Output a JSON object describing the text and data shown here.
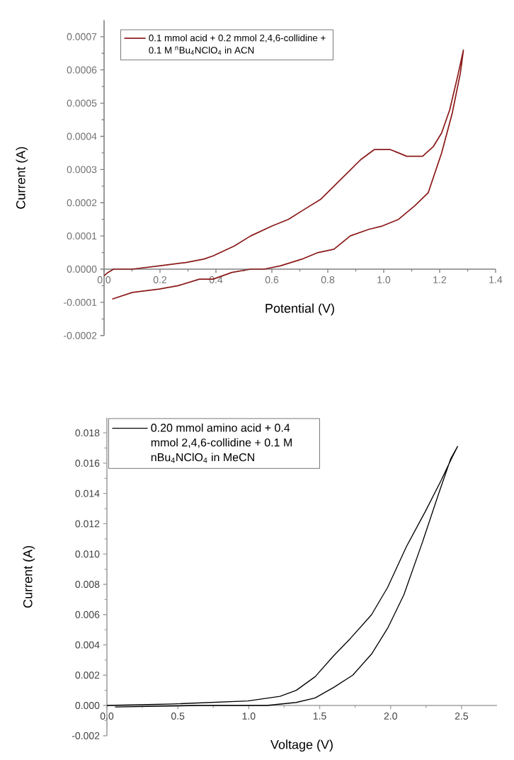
{
  "chart_data": [
    {
      "type": "line",
      "xlabel": "Potential (V)",
      "ylabel": "Current (A)",
      "xlim": [
        0,
        1.4
      ],
      "ylim": [
        -0.0002,
        0.00075
      ],
      "xticks": [
        {
          "value": 0,
          "label": "0.0"
        },
        {
          "value": 0.2,
          "label": "0.2"
        },
        {
          "value": 0.4,
          "label": "0.4"
        },
        {
          "value": 0.6,
          "label": "0.6"
        },
        {
          "value": 0.8,
          "label": "0.8"
        },
        {
          "value": 1.0,
          "label": "1.0"
        },
        {
          "value": 1.2,
          "label": "1.2"
        },
        {
          "value": 1.4,
          "label": "1.4"
        }
      ],
      "yticks": [
        {
          "value": -0.0002,
          "label": "-0.0002"
        },
        {
          "value": -0.0001,
          "label": "-0.0001"
        },
        {
          "value": 0,
          "label": "0.0000"
        },
        {
          "value": 0.0001,
          "label": "0.0001"
        },
        {
          "value": 0.0002,
          "label": "0.0002"
        },
        {
          "value": 0.0003,
          "label": "0.0003"
        },
        {
          "value": 0.0004,
          "label": "0.0004"
        },
        {
          "value": 0.0005,
          "label": "0.0005"
        },
        {
          "value": 0.0006,
          "label": "0.0006"
        },
        {
          "value": 0.0007,
          "label": "0.0007"
        }
      ],
      "legend": "top left",
      "series": [
        {
          "name": "0.1 mmol acid + 0.2 mmol 2,4,6-collidine + 0.1 M $^{n}$Bu$_{4}$NClO$_{4}$ in ACN",
          "color": "#8b1a1a",
          "x": [
            0,
            0.014,
            0.034,
            0.1,
            0.197,
            0.293,
            0.356,
            0.39,
            0.466,
            0.524,
            0.601,
            0.659,
            0.716,
            0.774,
            0.822,
            0.87,
            0.918,
            0.966,
            0.99,
            1.024,
            1.053,
            1.082,
            1.139,
            1.178,
            1.207,
            1.236,
            1.264,
            1.285,
            1.274,
            1.245,
            1.207,
            1.159,
            1.11,
            1.053,
            0.995,
            0.947,
            0.88,
            0.822,
            0.765,
            0.707,
            0.63,
            0.572,
            0.524,
            0.457,
            0.39,
            0.341,
            0.264,
            0.197,
            0.101,
            0.029
          ],
          "values": [
            -2e-05,
            -1e-05,
            0,
            0,
            1e-05,
            2e-05,
            3e-05,
            4e-05,
            7e-05,
            0.0001,
            0.00013,
            0.00015,
            0.00018,
            0.00021,
            0.00025,
            0.00029,
            0.00033,
            0.00036,
            0.00036,
            0.00036,
            0.00035,
            0.00034,
            0.00034,
            0.00037,
            0.00041,
            0.00048,
            0.00058,
            0.00066,
            0.00059,
            0.00047,
            0.00035,
            0.00023,
            0.00019,
            0.00015,
            0.00013,
            0.00012,
            0.0001,
            6e-05,
            5e-05,
            3e-05,
            1e-05,
            0,
            0,
            -1e-05,
            -3e-05,
            -3e-05,
            -5e-05,
            -6e-05,
            -7e-05,
            -9e-05
          ]
        }
      ]
    },
    {
      "type": "line",
      "xlabel": "Voltage (V)",
      "ylabel": "Current (A)",
      "xlim": [
        0,
        2.75
      ],
      "ylim": [
        -0.002,
        0.019
      ],
      "xticks": [
        {
          "value": 0,
          "label": "0.0"
        },
        {
          "value": 0.5,
          "label": "0.5"
        },
        {
          "value": 1.0,
          "label": "1.0"
        },
        {
          "value": 1.5,
          "label": "1.5"
        },
        {
          "value": 2.0,
          "label": "2.0"
        },
        {
          "value": 2.5,
          "label": "2.5"
        }
      ],
      "yticks": [
        {
          "value": -0.002,
          "label": "-0.002"
        },
        {
          "value": 0,
          "label": "0.000"
        },
        {
          "value": 0.002,
          "label": "0.002"
        },
        {
          "value": 0.004,
          "label": "0.004"
        },
        {
          "value": 0.006,
          "label": "0.006"
        },
        {
          "value": 0.008,
          "label": "0.008"
        },
        {
          "value": 0.01,
          "label": "0.010"
        },
        {
          "value": 0.012,
          "label": "0.012"
        },
        {
          "value": 0.014,
          "label": "0.014"
        },
        {
          "value": 0.016,
          "label": "0.016"
        },
        {
          "value": 0.018,
          "label": "0.018"
        }
      ],
      "legend": "top left",
      "series": [
        {
          "name": "0.20 mmol amino acid + 0.4 mmol 2,4,6-collidine + 0.1 M nBu$_{4}$NClO$_{4}$ in MeCN",
          "color": "#000000",
          "x": [
            0,
            0.464,
            0.994,
            1.22,
            1.335,
            1.468,
            1.6,
            1.714,
            1.866,
            1.979,
            2.112,
            2.244,
            2.358,
            2.434,
            2.472,
            2.424,
            2.339,
            2.225,
            2.093,
            1.979,
            1.866,
            1.733,
            1.6,
            1.468,
            1.335,
            1.127,
            0.653,
            0.057
          ],
          "values": [
            0,
            0.0001,
            0.0003,
            0.0006,
            0.001,
            0.0019,
            0.0033,
            0.0044,
            0.006,
            0.0078,
            0.0105,
            0.0128,
            0.0149,
            0.0164,
            0.0171,
            0.0163,
            0.014,
            0.0108,
            0.0073,
            0.0051,
            0.0034,
            0.002,
            0.0012,
            0.0005,
            0.0002,
            0,
            0,
            -0.0001
          ]
        }
      ]
    }
  ]
}
